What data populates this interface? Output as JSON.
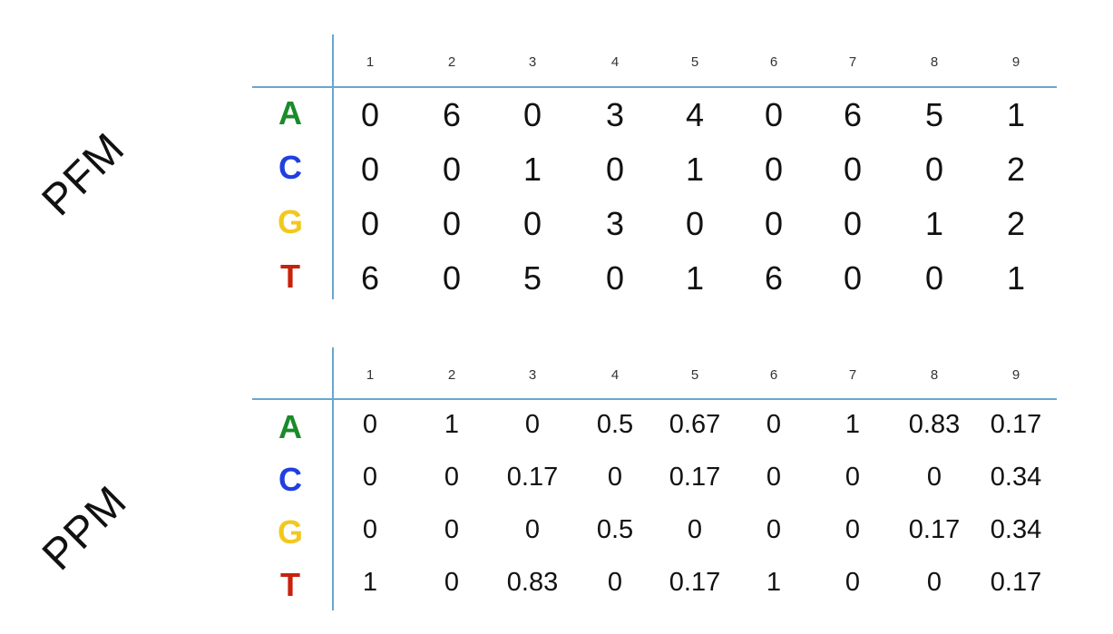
{
  "bases": [
    {
      "letter": "A",
      "color": "#1a8a2a"
    },
    {
      "letter": "C",
      "color": "#1f3fe0"
    },
    {
      "letter": "G",
      "color": "#f2c81e"
    },
    {
      "letter": "T",
      "color": "#c8210e"
    }
  ],
  "pfm": {
    "label": "PFM",
    "columns": [
      "1",
      "2",
      "3",
      "4",
      "5",
      "6",
      "7",
      "8",
      "9"
    ],
    "rows": [
      [
        "0",
        "6",
        "0",
        "3",
        "4",
        "0",
        "6",
        "5",
        "1"
      ],
      [
        "0",
        "0",
        "1",
        "0",
        "1",
        "0",
        "0",
        "0",
        "2"
      ],
      [
        "0",
        "0",
        "0",
        "3",
        "0",
        "0",
        "0",
        "1",
        "2"
      ],
      [
        "6",
        "0",
        "5",
        "0",
        "1",
        "6",
        "0",
        "0",
        "1"
      ]
    ]
  },
  "ppm": {
    "label": "PPM",
    "columns": [
      "1",
      "2",
      "3",
      "4",
      "5",
      "6",
      "7",
      "8",
      "9"
    ],
    "rows": [
      [
        "0",
        "1",
        "0",
        "0.5",
        "0.67",
        "0",
        "1",
        "0.83",
        "0.17"
      ],
      [
        "0",
        "0",
        "0.17",
        "0",
        "0.17",
        "0",
        "0",
        "0",
        "0.34"
      ],
      [
        "0",
        "0",
        "0",
        "0.5",
        "0",
        "0",
        "0",
        "0.17",
        "0.34"
      ],
      [
        "1",
        "0",
        "0.83",
        "0",
        "0.17",
        "1",
        "0",
        "0",
        "0.17"
      ]
    ]
  }
}
